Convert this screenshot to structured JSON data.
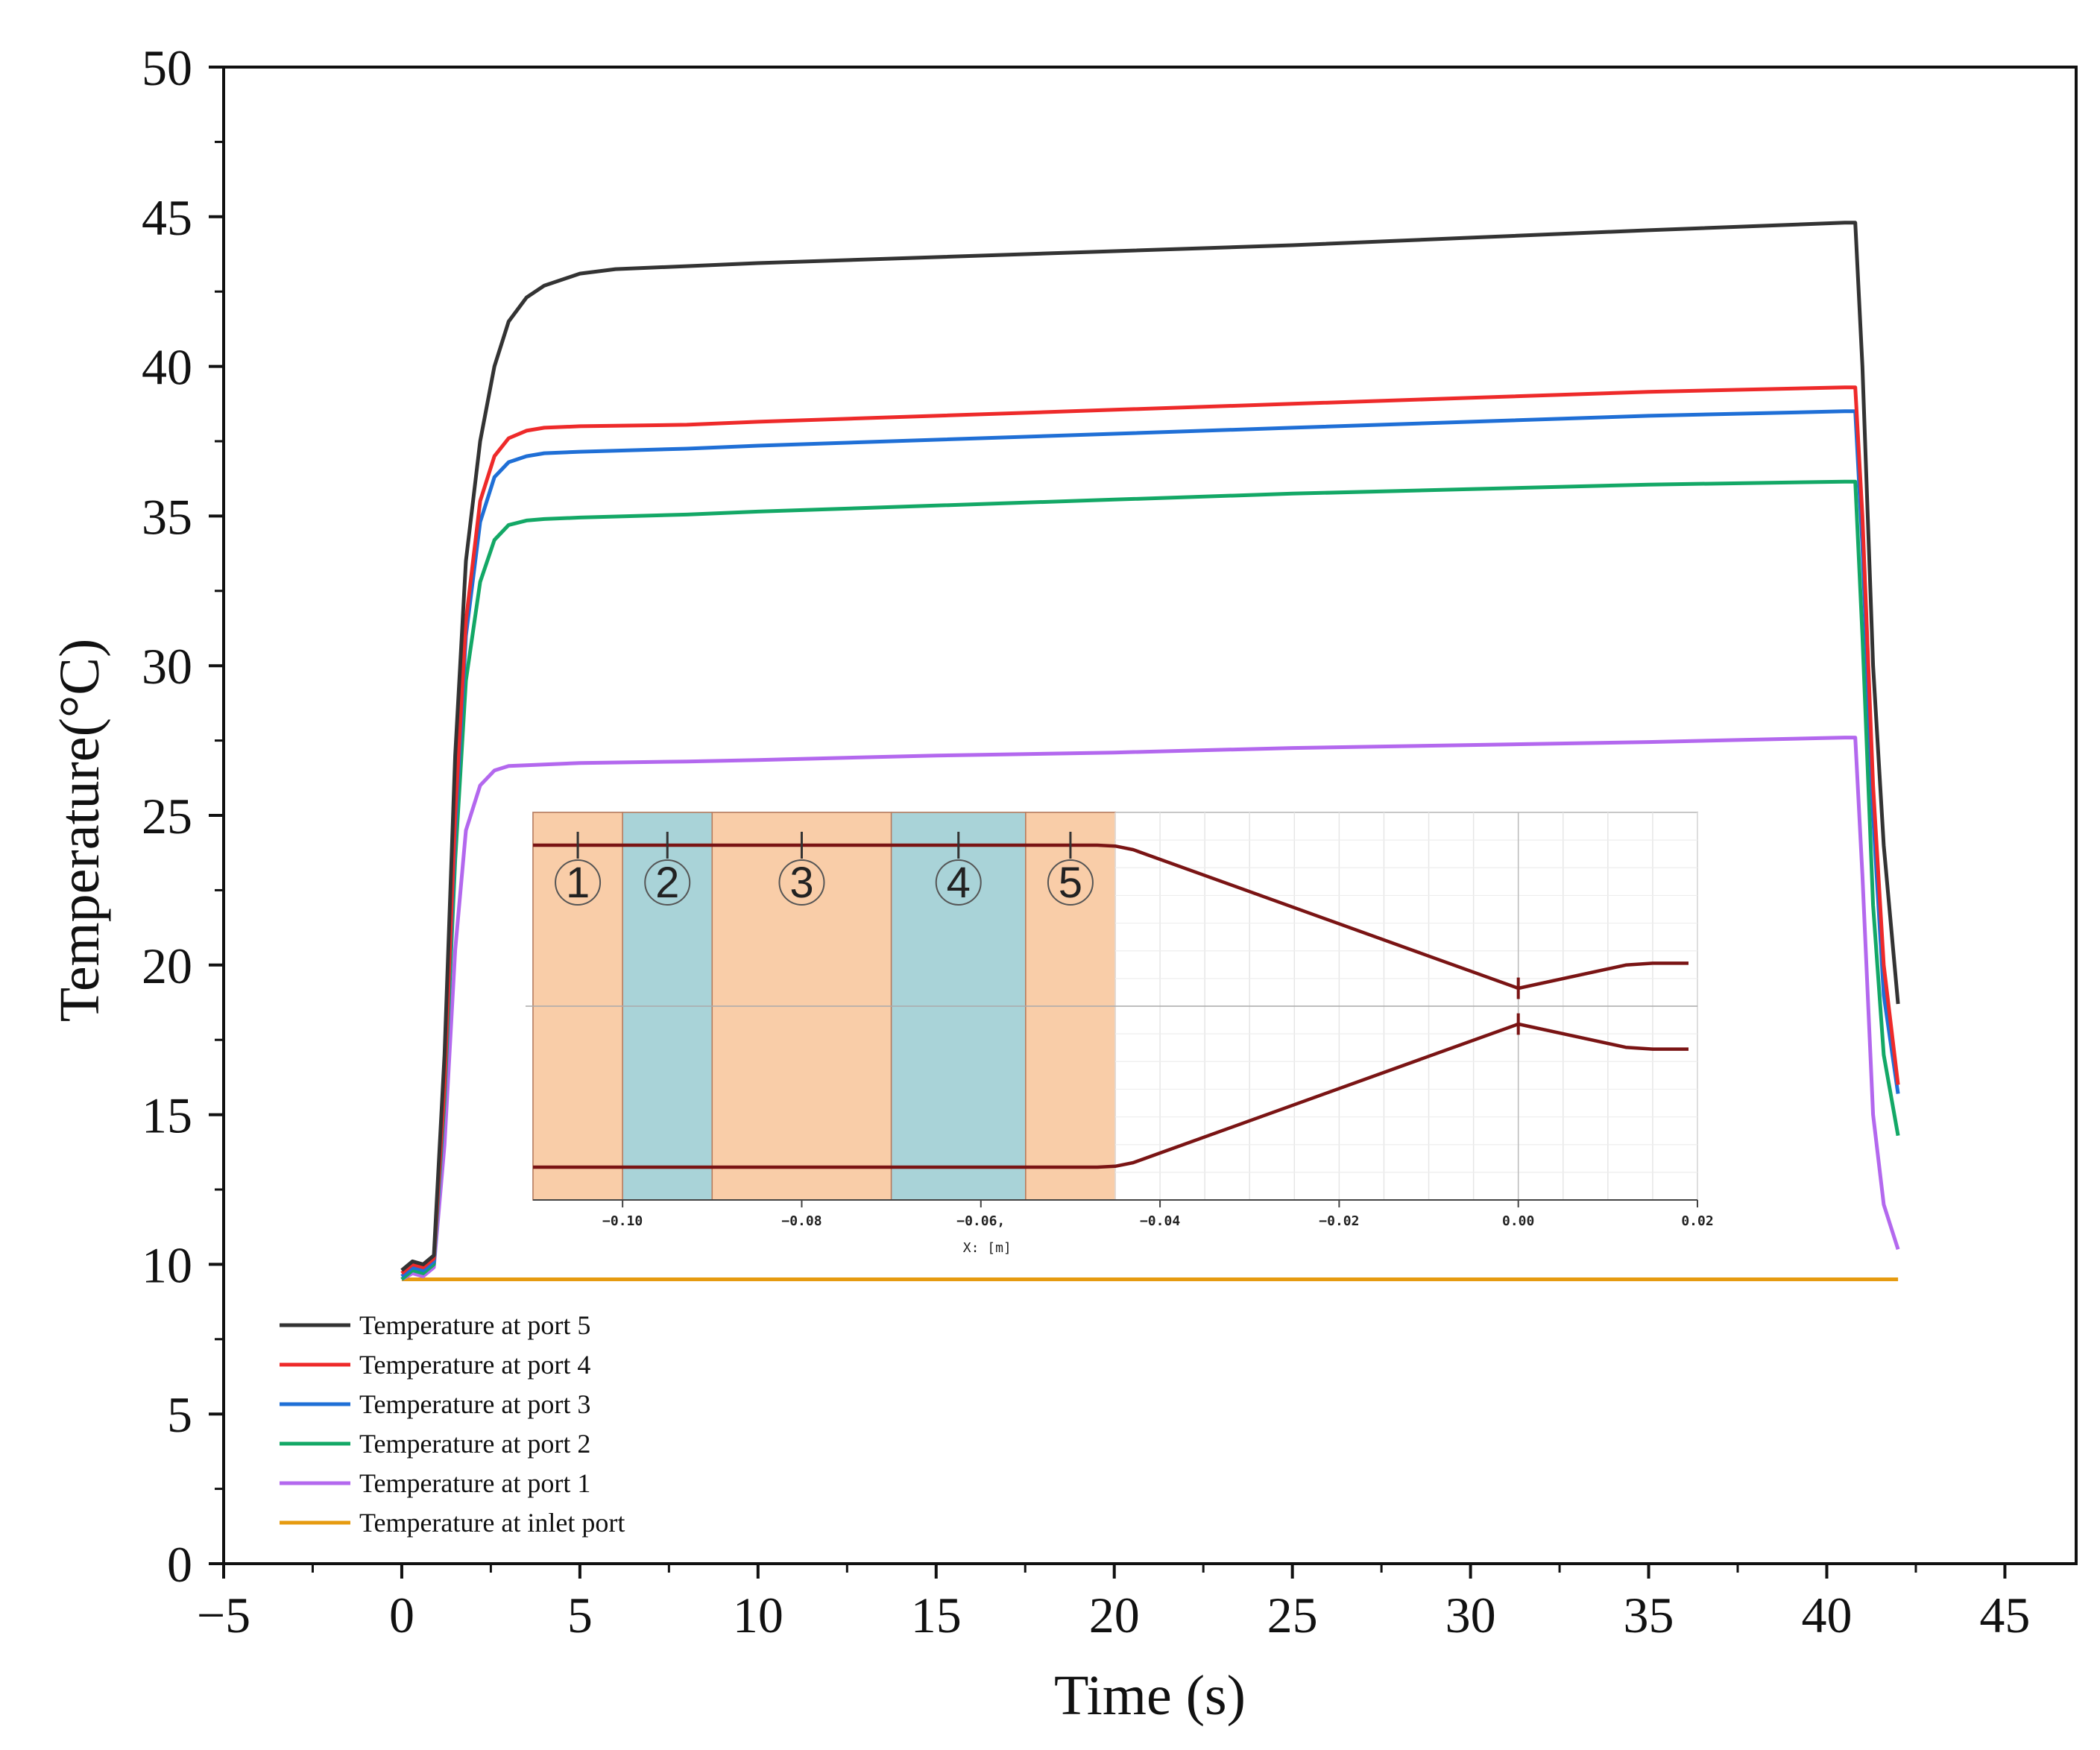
{
  "chart_data": {
    "type": "line",
    "xlabel": "Time (s)",
    "ylabel": "Temperature(°C)",
    "xlim": [
      -5,
      47
    ],
    "ylim": [
      0,
      50
    ],
    "xticks": [
      -5,
      0,
      5,
      10,
      15,
      20,
      25,
      30,
      35,
      40,
      45
    ],
    "xtick_labels": [
      "−5",
      "0",
      "5",
      "10",
      "15",
      "20",
      "25",
      "30",
      "35",
      "40",
      "45"
    ],
    "yticks": [
      0,
      5,
      10,
      15,
      20,
      25,
      30,
      35,
      40,
      45,
      50
    ],
    "ytick_labels": [
      "0",
      "5",
      "10",
      "15",
      "20",
      "25",
      "30",
      "35",
      "40",
      "45",
      "50"
    ],
    "legend_position": "bottom-left",
    "series": [
      {
        "name": "Temperature at port 5",
        "color": "#333333",
        "x": [
          0,
          0.3,
          0.6,
          0.9,
          1.2,
          1.5,
          1.8,
          2.2,
          2.6,
          3.0,
          3.5,
          4.0,
          5.0,
          6.0,
          8.0,
          10,
          15,
          20,
          25,
          30,
          35,
          40.5,
          40.8,
          41.0,
          41.3,
          41.6,
          42.0
        ],
        "y": [
          9.8,
          10.1,
          10.0,
          10.3,
          17.0,
          27.0,
          33.5,
          37.5,
          40.0,
          41.5,
          42.3,
          42.7,
          43.1,
          43.25,
          43.35,
          43.45,
          43.65,
          43.85,
          44.05,
          44.3,
          44.55,
          44.8,
          44.8,
          40.0,
          30.0,
          24.0,
          18.7
        ]
      },
      {
        "name": "Temperature at port 4",
        "color": "#ee2a2a",
        "x": [
          0,
          0.3,
          0.6,
          0.9,
          1.2,
          1.5,
          1.8,
          2.2,
          2.6,
          3.0,
          3.5,
          4.0,
          5.0,
          8.0,
          10,
          15,
          20,
          25,
          30,
          35,
          40.5,
          40.8,
          41.0,
          41.3,
          41.6,
          42.0
        ],
        "y": [
          9.7,
          10.0,
          9.9,
          10.2,
          16.0,
          25.0,
          31.5,
          35.5,
          37.0,
          37.6,
          37.85,
          37.95,
          38.0,
          38.05,
          38.15,
          38.35,
          38.55,
          38.75,
          38.95,
          39.15,
          39.3,
          39.3,
          35.0,
          26.0,
          20.0,
          16.0
        ]
      },
      {
        "name": "Temperature at port 3",
        "color": "#1f6fd6",
        "x": [
          0,
          0.3,
          0.6,
          0.9,
          1.2,
          1.5,
          1.8,
          2.2,
          2.6,
          3.0,
          3.5,
          4.0,
          5.0,
          8.0,
          10,
          15,
          20,
          25,
          30,
          35,
          40.5,
          40.8,
          41.0,
          41.3,
          41.6,
          42.0
        ],
        "y": [
          9.6,
          9.9,
          9.8,
          10.1,
          16.0,
          24.5,
          31.0,
          34.8,
          36.3,
          36.8,
          37.0,
          37.1,
          37.15,
          37.25,
          37.35,
          37.55,
          37.75,
          37.95,
          38.15,
          38.35,
          38.5,
          38.5,
          34.0,
          25.0,
          19.0,
          15.7
        ]
      },
      {
        "name": "Temperature at port 2",
        "color": "#13a866",
        "x": [
          0,
          0.3,
          0.6,
          0.9,
          1.2,
          1.5,
          1.8,
          2.2,
          2.6,
          3.0,
          3.5,
          4.0,
          5.0,
          8.0,
          10,
          15,
          20,
          25,
          30,
          35,
          40.5,
          40.8,
          41.0,
          41.3,
          41.6,
          42.0
        ],
        "y": [
          9.5,
          9.8,
          9.7,
          10.0,
          15.5,
          23.5,
          29.5,
          32.8,
          34.2,
          34.7,
          34.85,
          34.9,
          34.95,
          35.05,
          35.15,
          35.35,
          35.55,
          35.75,
          35.9,
          36.05,
          36.15,
          36.15,
          31.0,
          22.0,
          17.0,
          14.3
        ]
      },
      {
        "name": "Temperature at port 1",
        "color": "#b368ee",
        "x": [
          0,
          0.3,
          0.6,
          0.9,
          1.2,
          1.5,
          1.8,
          2.2,
          2.6,
          3.0,
          4.0,
          5.0,
          8.0,
          10,
          15,
          20,
          25,
          30,
          35,
          40.5,
          40.8,
          41.0,
          41.3,
          41.6,
          42.0
        ],
        "y": [
          9.5,
          9.7,
          9.6,
          9.9,
          14.0,
          20.5,
          24.5,
          26.0,
          26.5,
          26.65,
          26.7,
          26.75,
          26.8,
          26.85,
          27.0,
          27.1,
          27.25,
          27.35,
          27.45,
          27.6,
          27.6,
          23.0,
          15.0,
          12.0,
          10.5
        ]
      },
      {
        "name": "Temperature at inlet port",
        "color": "#e69b10",
        "x": [
          0,
          42.0
        ],
        "y": [
          9.5,
          9.5
        ]
      }
    ],
    "inset": {
      "type": "line",
      "title": "",
      "xlabel": "X:  [m]",
      "xlim": [
        -0.11,
        0.02
      ],
      "xticks": [
        -0.1,
        -0.08,
        -0.06,
        -0.04,
        -0.02,
        0.0,
        0.02
      ],
      "xtick_labels": [
        "−0.10",
        "−0.08",
        "−0.06,",
        "−0.04",
        "−0.02",
        "0.00",
        "0.02"
      ],
      "ylim": [
        -1,
        1
      ],
      "regions": [
        {
          "label": "1",
          "x0": -0.11,
          "x1": -0.1,
          "color": "#f9cda8",
          "marker_x": -0.105
        },
        {
          "label": "2",
          "x0": -0.1,
          "x1": -0.09,
          "color": "#a9d3d8",
          "marker_x": -0.095
        },
        {
          "label": "3",
          "x0": -0.09,
          "x1": -0.07,
          "color": "#f9cda8",
          "marker_x": -0.08
        },
        {
          "label": "4",
          "x0": -0.07,
          "x1": -0.055,
          "color": "#a9d3d8",
          "marker_x": -0.0625
        },
        {
          "label": "5",
          "x0": -0.055,
          "x1": -0.045,
          "color": "#f9cda8",
          "marker_x": -0.05
        }
      ],
      "profile_color": "#7a1414",
      "upper_profile": {
        "x": [
          -0.11,
          -0.047,
          -0.045,
          -0.043,
          0.0,
          0.012,
          0.015,
          0.019
        ],
        "y": [
          0.9,
          0.9,
          0.895,
          0.875,
          0.1,
          0.23,
          0.24,
          0.24
        ]
      },
      "lower_profile": {
        "x": [
          -0.11,
          -0.047,
          -0.045,
          -0.043,
          0.0,
          0.012,
          0.015,
          0.019
        ],
        "y": [
          -0.9,
          -0.9,
          -0.895,
          -0.875,
          -0.1,
          -0.23,
          -0.24,
          -0.24
        ]
      }
    }
  }
}
